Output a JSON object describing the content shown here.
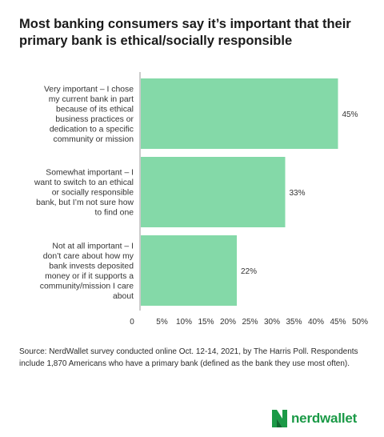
{
  "title": "Most banking consumers say it’s important that their primary bank is ethical/socially responsible",
  "chart_data": {
    "type": "bar",
    "orientation": "horizontal",
    "categories": [
      "Very important – I chose my current bank in part because of its ethical business practices or dedication to a specific community or mission",
      "Somewhat important – I want to switch to an ethical or socially responsible bank, but I’m not sure how to find one",
      "Not at all important – I don’t care about how my bank invests deposited money or if it supports a community/mission I care about"
    ],
    "category_lines": [
      [
        "Very important – I chose",
        "my current bank in part",
        "because of its ethical",
        "business practices or",
        "dedication to a specific",
        "community or mission"
      ],
      [
        "Somewhat important – I",
        "want to switch to an ethical",
        "or socially responsible",
        "bank, but I’m not sure how",
        "to find one"
      ],
      [
        "Not at all important – I",
        "don’t care about how my",
        "bank invests deposited",
        "money or if it supports a",
        "community/mission I care",
        "about"
      ]
    ],
    "values": [
      45,
      33,
      22
    ],
    "value_labels": [
      "45%",
      "33%",
      "22%"
    ],
    "xlim": [
      0,
      50
    ],
    "xticks": [
      0,
      5,
      10,
      15,
      20,
      25,
      30,
      35,
      40,
      45,
      50
    ],
    "xtick_labels": [
      "0",
      "5%",
      "10%",
      "15%",
      "20%",
      "25%",
      "30%",
      "35%",
      "40%",
      "45%",
      "50%"
    ],
    "bar_color": "#84d9a8",
    "grid": false
  },
  "source": "Source: NerdWallet survey conducted online Oct. 12-14, 2021, by The Harris Poll. Respondents include 1,870 Americans who have a primary bank (defined as the bank they use most often).",
  "brand": {
    "name": "nerdwallet",
    "icon": "nerdwallet-logo-icon",
    "color": "#1b9a47"
  }
}
